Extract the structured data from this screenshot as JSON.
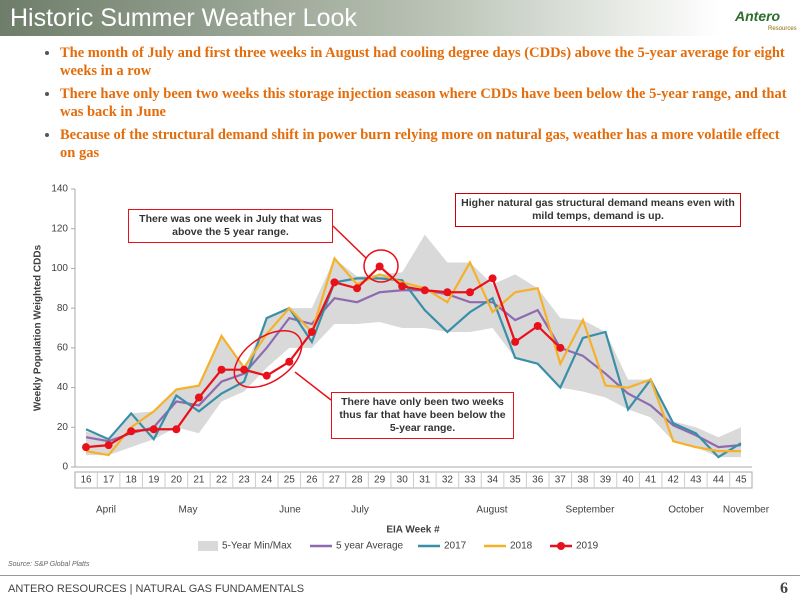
{
  "header": {
    "title": "Historic Summer Weather Look",
    "logo": "Antero",
    "logo_sub": "Resources"
  },
  "bullets": [
    "The month of July and  first three weeks in August had cooling degree days (CDDs) above the 5-year average for eight weeks in a row",
    "There have only been two weeks this storage injection season where CDDs have been below the 5-year range, and that was back in June",
    "Because of the structural demand shift in power burn relying more on natural gas, weather has a more volatile effect on gas"
  ],
  "chart_data": {
    "type": "line",
    "y_label": "Weekly Population Weighted CDDs",
    "x_label": "EIA Week #",
    "categories": [
      "16",
      "17",
      "18",
      "19",
      "20",
      "21",
      "22",
      "23",
      "24",
      "25",
      "26",
      "27",
      "28",
      "29",
      "30",
      "31",
      "32",
      "33",
      "34",
      "35",
      "36",
      "37",
      "38",
      "39",
      "40",
      "41",
      "42",
      "43",
      "44",
      "45"
    ],
    "months": [
      "April",
      "May",
      "June",
      "July",
      "August",
      "September",
      "October",
      "November"
    ],
    "ylim": [
      0,
      140
    ],
    "yticks": [
      0,
      20,
      40,
      60,
      80,
      100,
      120,
      140
    ],
    "band": {
      "name": "5-Year Min/Max",
      "color": "#d9d9d9",
      "max": [
        18,
        14,
        27,
        28,
        39,
        41,
        66,
        50,
        75,
        80,
        80,
        105,
        96,
        97,
        98,
        117,
        103,
        103,
        92,
        97,
        90,
        75,
        74,
        68,
        44,
        44,
        23,
        20,
        15,
        20
      ],
      "min": [
        6,
        6,
        10,
        14,
        20,
        17,
        33,
        38,
        50,
        60,
        60,
        72,
        72,
        73,
        70,
        70,
        68,
        68,
        70,
        55,
        52,
        40,
        38,
        35,
        29,
        25,
        13,
        10,
        5,
        5
      ]
    },
    "series": [
      {
        "name": "5 year Average",
        "color": "#8e6bb0",
        "values": [
          15,
          13,
          17,
          20,
          33,
          31,
          43,
          47,
          60,
          75,
          72,
          85,
          83,
          88,
          89,
          89,
          87,
          83,
          83,
          74,
          79,
          60,
          56,
          47,
          37,
          31,
          21,
          16,
          10,
          11
        ]
      },
      {
        "name": "2017",
        "color": "#3a8fa8",
        "values": [
          19,
          14,
          27,
          14,
          36,
          28,
          37,
          43,
          75,
          80,
          63,
          93,
          95,
          95,
          94,
          79,
          68,
          78,
          85,
          55,
          52,
          40,
          65,
          68,
          29,
          44,
          22,
          17,
          5,
          12
        ]
      },
      {
        "name": "2018",
        "color": "#f5b12a",
        "values": [
          8,
          6,
          20,
          28,
          39,
          41,
          66,
          50,
          67,
          80,
          68,
          105,
          92,
          97,
          93,
          90,
          83,
          103,
          78,
          88,
          90,
          52,
          74,
          41,
          40,
          44,
          13,
          10,
          8,
          8
        ]
      },
      {
        "name": "2019",
        "color": "#e8101a",
        "values": [
          10,
          11,
          18,
          19,
          19,
          35,
          49,
          49,
          46,
          53,
          68,
          93,
          90,
          101,
          91,
          89,
          88,
          88,
          95,
          63,
          71,
          60,
          null,
          null,
          null,
          null,
          null,
          null,
          null,
          null
        ]
      }
    ],
    "annotations": [
      "There was one week in July that was above the 5 year range.",
      "Higher natural gas structural demand means even with mild temps, demand is up.",
      "There have only been two weeks thus far that have been below the 5-year range."
    ],
    "source": "Source:  S&P Global Platts"
  },
  "footer": {
    "text": "ANTERO RESOURCES | NATURAL GAS FUNDAMENTALS",
    "page": "6"
  }
}
